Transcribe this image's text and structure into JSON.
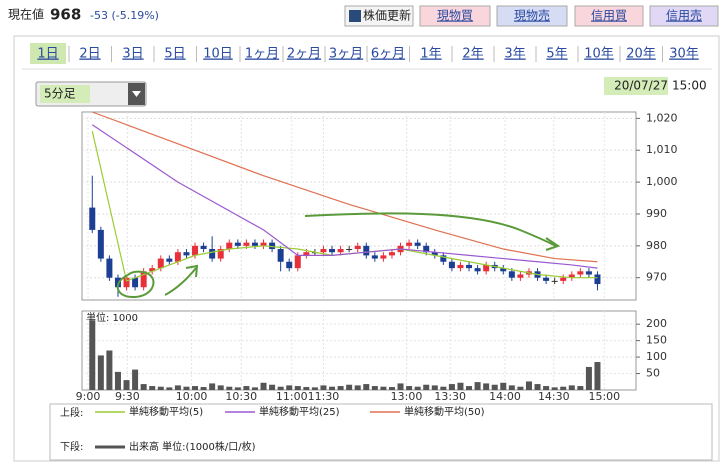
{
  "header": {
    "label": "現在値",
    "price": "968",
    "change": "-53 (-5.19%)",
    "buttons": [
      "株価更新",
      "現物買",
      "現物売",
      "信用買",
      "信用売"
    ]
  },
  "tabs": [
    "1日",
    "2日",
    "3日",
    "5日",
    "10日",
    "1ヶ月",
    "2ヶ月",
    "3ヶ月",
    "6ヶ月",
    "1年",
    "2年",
    "3年",
    "5年",
    "10年",
    "20年",
    "30年"
  ],
  "dropdown": "5分足",
  "date": "20/07/27",
  "time": "15:00",
  "legend": {
    "upper": "上段:",
    "lower": "下段:"
  },
  "chart_data": [
    {
      "type": "candlestick",
      "up_color": "#e8303a",
      "down_color": "#1c3f94",
      "xlim": [
        -1.2,
        63.5
      ],
      "xticks": [
        {
          "value": -0.5,
          "label": "9:00"
        },
        {
          "value": 4.1,
          "label": "9:30"
        },
        {
          "value": 11.6,
          "label": "10:00"
        },
        {
          "value": 17.4,
          "label": "10:30"
        },
        {
          "value": 23.3,
          "label": "11:00"
        },
        {
          "value": 27,
          "label": "11:30"
        },
        {
          "value": 36.7,
          "label": "13:00"
        },
        {
          "value": 41.8,
          "label": "13:30"
        },
        {
          "value": 48.2,
          "label": "14:00"
        },
        {
          "value": 53.9,
          "label": "14:30"
        },
        {
          "value": 59.8,
          "label": "15:00"
        }
      ],
      "ylim": [
        963,
        1022
      ],
      "yticks": [
        970,
        980,
        990,
        {
          "value": 1000,
          "label": "1,000"
        },
        {
          "value": 1010,
          "label": "1,010"
        },
        {
          "value": 1020,
          "label": "1,020"
        }
      ],
      "grid": true,
      "open": [
        992,
        985,
        976,
        970,
        967,
        970,
        967,
        972,
        973,
        976,
        975,
        978,
        977,
        980,
        979,
        976,
        979,
        981,
        980,
        981,
        980,
        981,
        979,
        975,
        973,
        977,
        978,
        978,
        979,
        978,
        979,
        979,
        980,
        977,
        976,
        977,
        978,
        980,
        981,
        980,
        978,
        977,
        975,
        973,
        974,
        973,
        972,
        974,
        973,
        972,
        970,
        971,
        972,
        970,
        969,
        969,
        970,
        971,
        972,
        971
      ],
      "high": [
        1002,
        986,
        977,
        971,
        971,
        971,
        973,
        974,
        977,
        977,
        979,
        979,
        981,
        981,
        983,
        980,
        982,
        982,
        982,
        982,
        982,
        982,
        980,
        976,
        978,
        979,
        979,
        980,
        980,
        980,
        980,
        981,
        981,
        978,
        978,
        979,
        981,
        982,
        982,
        981,
        979,
        978,
        976,
        975,
        975,
        974,
        975,
        975,
        974,
        973,
        972,
        973,
        973,
        971,
        970,
        971,
        972,
        973,
        973,
        972
      ],
      "low": [
        984,
        975,
        969,
        964,
        966,
        966,
        966,
        971,
        972,
        974,
        974,
        976,
        976,
        978,
        975,
        975,
        978,
        979,
        979,
        979,
        979,
        978,
        972,
        972,
        972,
        976,
        977,
        977,
        977,
        977,
        978,
        978,
        976,
        975,
        975,
        976,
        977,
        979,
        979,
        977,
        976,
        974,
        972,
        972,
        972,
        971,
        971,
        972,
        971,
        969,
        969,
        970,
        969,
        968,
        968,
        968,
        969,
        970,
        970,
        966
      ],
      "close": [
        985,
        976,
        970,
        967,
        970,
        967,
        972,
        973,
        976,
        975,
        978,
        977,
        980,
        979,
        976,
        979,
        981,
        980,
        981,
        980,
        981,
        979,
        975,
        973,
        977,
        978,
        978,
        979,
        978,
        979,
        979,
        980,
        977,
        976,
        977,
        978,
        980,
        981,
        980,
        978,
        977,
        975,
        973,
        974,
        973,
        972,
        974,
        973,
        972,
        970,
        971,
        972,
        970,
        969,
        969,
        970,
        971,
        972,
        971,
        968
      ],
      "series": [
        {
          "name": "単純移動平均(5)",
          "color": "#9acd32",
          "x": [
            0,
            4,
            8,
            12,
            16,
            20,
            24,
            28,
            32,
            36,
            40,
            44,
            48,
            52,
            56,
            59
          ],
          "values": [
            1016,
            969,
            973,
            977,
            979,
            980,
            979,
            977,
            978,
            979,
            977,
            975,
            973,
            971,
            970,
            970
          ]
        },
        {
          "name": "単純移動平均(25)",
          "color": "#9b59d0",
          "x": [
            0,
            10,
            20,
            24,
            28,
            32,
            36,
            40,
            44,
            48,
            52,
            56,
            59
          ],
          "values": [
            1018,
            1000,
            985,
            977,
            977,
            978,
            979,
            978,
            977,
            976,
            975,
            974,
            973
          ]
        },
        {
          "name": "単純移動平均(50)",
          "color": "#e07050",
          "x": [
            0,
            10,
            20,
            30,
            40,
            48,
            54,
            59
          ],
          "values": [
            1022,
            1012,
            1002,
            993,
            985,
            979,
            976,
            975
          ]
        }
      ]
    },
    {
      "type": "bar",
      "label": "単位: 1000",
      "ylim": [
        0,
        240
      ],
      "yticks": [
        50,
        100,
        150,
        200
      ],
      "series": [
        {
          "name": "出来高 単位:(1000株/口/枚)",
          "color": "#555555",
          "values": [
            212,
            105,
            120,
            55,
            30,
            62,
            18,
            12,
            10,
            8,
            14,
            10,
            12,
            9,
            20,
            14,
            10,
            8,
            12,
            8,
            22,
            16,
            10,
            14,
            12,
            9,
            8,
            14,
            10,
            12,
            16,
            14,
            18,
            12,
            10,
            9,
            20,
            12,
            10,
            16,
            14,
            10,
            18,
            22,
            12,
            24,
            20,
            16,
            22,
            14,
            10,
            26,
            18,
            12,
            8,
            10,
            14,
            12,
            70,
            85
          ]
        }
      ]
    }
  ]
}
